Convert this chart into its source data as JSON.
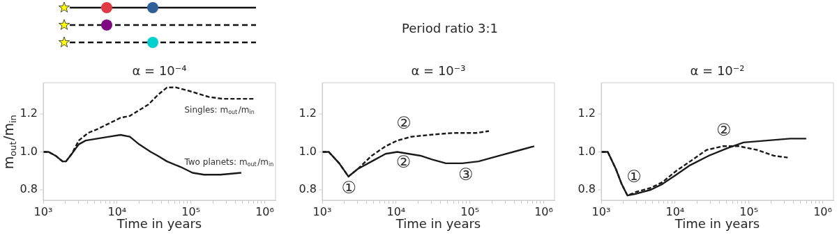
{
  "chart_data": [
    {
      "type": "other",
      "title": "Period ratio 3:1"
    },
    {
      "type": "line",
      "title": "α = 10⁻⁴",
      "xlabel": "Time in years",
      "ylabel": "m$_{out}$/m$_{in}$",
      "log": "x",
      "grid": false,
      "marker": "none",
      "xlim": [
        1000,
        1400000
      ],
      "ylim": [
        0.745,
        1.365
      ],
      "yticks": [
        {
          "value": 0.8,
          "label": "0.8"
        },
        {
          "value": 1,
          "label": "1.0"
        },
        {
          "value": 1.2,
          "label": "1.2"
        }
      ],
      "xticks": [
        {
          "value": 1000,
          "label": "10³"
        },
        {
          "value": 2000,
          "label": null
        },
        {
          "value": 3000,
          "label": null
        },
        {
          "value": 4000,
          "label": null
        },
        {
          "value": 5000,
          "label": null
        },
        {
          "value": 6000,
          "label": null
        },
        {
          "value": 7000,
          "label": null
        },
        {
          "value": 8000,
          "label": null
        },
        {
          "value": 9000,
          "label": null
        },
        {
          "value": 10000,
          "label": "10⁴"
        },
        {
          "value": 20000,
          "label": null
        },
        {
          "value": 30000,
          "label": null
        },
        {
          "value": 40000,
          "label": null
        },
        {
          "value": 50000,
          "label": null
        },
        {
          "value": 60000,
          "label": null
        },
        {
          "value": 70000,
          "label": null
        },
        {
          "value": 80000,
          "label": null
        },
        {
          "value": 90000,
          "label": null
        },
        {
          "value": 100000,
          "label": "10⁵"
        },
        {
          "value": 200000,
          "label": null
        },
        {
          "value": 300000,
          "label": null
        },
        {
          "value": 400000,
          "label": null
        },
        {
          "value": 500000,
          "label": null
        },
        {
          "value": 600000,
          "label": null
        },
        {
          "value": 700000,
          "label": null
        },
        {
          "value": 800000,
          "label": null
        },
        {
          "value": 900000,
          "label": null
        },
        {
          "value": 1000000,
          "label": "10⁶"
        }
      ],
      "series": [
        {
          "type": "line",
          "line_style": "solid",
          "color": "#1a1a1a",
          "x": [
            1000,
            1181,
            1468,
            1825,
            2031,
            2437,
            3027,
            3758,
            5400,
            7770,
            11140,
            14900,
            19900,
            28600,
            35500,
            47400,
            73200,
            105000,
            151000,
            251000,
            481000
          ],
          "values": [
            1.0,
            1.0,
            0.98,
            0.95,
            0.95,
            0.99,
            1.04,
            1.06,
            1.07,
            1.08,
            1.09,
            1.08,
            1.04,
            1.0,
            0.98,
            0.95,
            0.92,
            0.89,
            0.88,
            0.88,
            0.89
          ]
        },
        {
          "type": "line",
          "line_style": "dashed",
          "color": "#1a1a1a",
          "x": [
            1000,
            1181,
            1468,
            1825,
            2031,
            2437,
            3027,
            4045,
            5400,
            7770,
            11140,
            14900,
            19900,
            26600,
            35500,
            47400,
            63400,
            98000,
            175000,
            270000,
            481000,
            743000
          ],
          "values": [
            1.0,
            1.0,
            0.98,
            0.95,
            0.95,
            0.99,
            1.06,
            1.1,
            1.12,
            1.15,
            1.18,
            1.19,
            1.22,
            1.25,
            1.3,
            1.34,
            1.34,
            1.32,
            1.29,
            1.28,
            1.28,
            1.28
          ]
        }
      ],
      "annotations": [
        "Singles: m$_{out}$/m$_{in}$",
        "Two planets: m$_{out}$/m$_{in}$"
      ]
    },
    {
      "type": "line",
      "title": "α = 10⁻³",
      "xlabel": "Time in years",
      "log": "x",
      "grid": false,
      "marker": "none",
      "xlim": [
        1000,
        1400000
      ],
      "ylim": [
        0.745,
        1.365
      ],
      "yticks": [
        {
          "value": 0.8,
          "label": "0.8"
        },
        {
          "value": 1,
          "label": "1.0"
        },
        {
          "value": 1.2,
          "label": "1.2"
        }
      ],
      "xticks": [
        {
          "value": 1000,
          "label": "10³"
        },
        {
          "value": 2000,
          "label": null
        },
        {
          "value": 3000,
          "label": null
        },
        {
          "value": 4000,
          "label": null
        },
        {
          "value": 5000,
          "label": null
        },
        {
          "value": 6000,
          "label": null
        },
        {
          "value": 7000,
          "label": null
        },
        {
          "value": 8000,
          "label": null
        },
        {
          "value": 9000,
          "label": null
        },
        {
          "value": 10000,
          "label": "10⁴"
        },
        {
          "value": 20000,
          "label": null
        },
        {
          "value": 30000,
          "label": null
        },
        {
          "value": 40000,
          "label": null
        },
        {
          "value": 50000,
          "label": null
        },
        {
          "value": 60000,
          "label": null
        },
        {
          "value": 70000,
          "label": null
        },
        {
          "value": 80000,
          "label": null
        },
        {
          "value": 90000,
          "label": null
        },
        {
          "value": 100000,
          "label": "10⁵"
        },
        {
          "value": 200000,
          "label": null
        },
        {
          "value": 300000,
          "label": null
        },
        {
          "value": 400000,
          "label": null
        },
        {
          "value": 500000,
          "label": null
        },
        {
          "value": 600000,
          "label": null
        },
        {
          "value": 700000,
          "label": null
        },
        {
          "value": 800000,
          "label": null
        },
        {
          "value": 900000,
          "label": null
        },
        {
          "value": 1000000,
          "label": "10⁶"
        }
      ],
      "series": [
        {
          "type": "line",
          "line_style": "solid",
          "color": "#1a1a1a",
          "x": [
            1000,
            1225,
            1698,
            2265,
            3027,
            4677,
            7210,
            10400,
            14900,
            21400,
            30700,
            47400,
            78700,
            131000,
            251000,
            481000,
            743000
          ],
          "values": [
            1.0,
            1.0,
            0.94,
            0.87,
            0.91,
            0.95,
            0.99,
            1.0,
            0.99,
            0.98,
            0.96,
            0.94,
            0.94,
            0.95,
            0.98,
            1.01,
            1.03
          ]
        },
        {
          "type": "line",
          "line_style": "dashed",
          "color": "#1a1a1a",
          "x": [
            1000,
            1225,
            1698,
            2265,
            3027,
            4677,
            7210,
            10400,
            16000,
            28600,
            58900,
            122000,
            181000
          ],
          "values": [
            1.0,
            1.0,
            0.94,
            0.87,
            0.91,
            0.98,
            1.03,
            1.06,
            1.08,
            1.09,
            1.1,
            1.1,
            1.11
          ]
        }
      ],
      "annotations": [
        "①",
        "②",
        "③",
        "②"
      ]
    },
    {
      "type": "line",
      "title": "α = 10⁻²",
      "xlabel": "Time in years",
      "log": "x",
      "grid": false,
      "marker": "none",
      "xlim": [
        1000,
        1400000
      ],
      "ylim": [
        0.745,
        1.365
      ],
      "yticks": [
        {
          "value": 0.8,
          "label": "0.8"
        },
        {
          "value": 1,
          "label": "1.0"
        },
        {
          "value": 1.2,
          "label": "1.2"
        }
      ],
      "xticks": [
        {
          "value": 1000,
          "label": "10³"
        },
        {
          "value": 2000,
          "label": null
        },
        {
          "value": 3000,
          "label": null
        },
        {
          "value": 4000,
          "label": null
        },
        {
          "value": 5000,
          "label": null
        },
        {
          "value": 6000,
          "label": null
        },
        {
          "value": 7000,
          "label": null
        },
        {
          "value": 8000,
          "label": null
        },
        {
          "value": 9000,
          "label": null
        },
        {
          "value": 10000,
          "label": "10⁴"
        },
        {
          "value": 20000,
          "label": null
        },
        {
          "value": 30000,
          "label": null
        },
        {
          "value": 40000,
          "label": null
        },
        {
          "value": 50000,
          "label": null
        },
        {
          "value": 60000,
          "label": null
        },
        {
          "value": 70000,
          "label": null
        },
        {
          "value": 80000,
          "label": null
        },
        {
          "value": 90000,
          "label": null
        },
        {
          "value": 100000,
          "label": "10⁵"
        },
        {
          "value": 200000,
          "label": null
        },
        {
          "value": 300000,
          "label": null
        },
        {
          "value": 400000,
          "label": null
        },
        {
          "value": 500000,
          "label": null
        },
        {
          "value": 600000,
          "label": null
        },
        {
          "value": 700000,
          "label": null
        },
        {
          "value": 800000,
          "label": null
        },
        {
          "value": 900000,
          "label": null
        },
        {
          "value": 1000000,
          "label": "10⁶"
        }
      ],
      "series": [
        {
          "type": "line",
          "line_style": "solid",
          "color": "#1a1a1a",
          "x": [
            1000,
            1225,
            1578,
            1892,
            2265,
            3027,
            4677,
            6710,
            10400,
            16000,
            28600,
            51100,
            84800,
            175000,
            361000,
            598000
          ],
          "values": [
            1.0,
            1.0,
            0.91,
            0.83,
            0.77,
            0.78,
            0.8,
            0.83,
            0.88,
            0.93,
            0.98,
            1.02,
            1.05,
            1.06,
            1.07,
            1.07
          ]
        },
        {
          "type": "line",
          "line_style": "dashed",
          "color": "#1a1a1a",
          "x": [
            1000,
            1225,
            1578,
            1892,
            2265,
            3027,
            4677,
            6710,
            10400,
            16000,
            26600,
            44200,
            73200,
            131000,
            217000,
            335000
          ],
          "values": [
            1.0,
            1.0,
            0.91,
            0.83,
            0.77,
            0.79,
            0.81,
            0.84,
            0.9,
            0.95,
            1.01,
            1.03,
            1.03,
            1.01,
            0.98,
            0.97
          ]
        }
      ],
      "annotations": [
        "①",
        "②"
      ]
    }
  ]
}
